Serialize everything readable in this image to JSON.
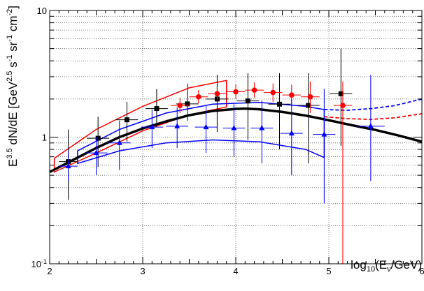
{
  "chart_data": {
    "type": "scatter",
    "xlabel": "log10(Eν/GeV)",
    "ylabel": "E^3.5 dN/dE [GeV^2.5 s^-1 sr^-1 cm^-2]",
    "xlim": [
      2,
      6
    ],
    "ylim": [
      0.1,
      10
    ],
    "yscale": "log",
    "grid": true,
    "x_ticks": [
      "2",
      "3",
      "4",
      "5",
      "6"
    ],
    "y_ticks": [
      {
        "value": 0.1,
        "base": "10",
        "exp": "-1"
      },
      {
        "value": 1,
        "base": "1",
        "exp": ""
      },
      {
        "value": 10,
        "base": "10",
        "exp": ""
      }
    ],
    "x_axis_title": {
      "base": "log",
      "sub1": "10",
      "mid": "(E",
      "sub2": "ν",
      "end": "/GeV)"
    },
    "y_axis_title": {
      "p1": "E",
      "s1": "3.5",
      "p2": " dN/dE [GeV",
      "s2": "2.5",
      "p3": " s",
      "s3": "-1",
      "p4": " sr",
      "s4": "-1",
      "p5": " cm",
      "s5": "-2",
      "p6": "]"
    },
    "colors": {
      "black": "#000000",
      "red": "#ff0000",
      "blue": "#0000ff",
      "grid": "#555555"
    },
    "model_curve": {
      "color": "#000000",
      "x": [
        2.0,
        2.25,
        2.5,
        2.75,
        3.0,
        3.25,
        3.5,
        3.75,
        4.0,
        4.1,
        4.25,
        4.5,
        4.75,
        5.0,
        5.25,
        5.5,
        5.75,
        6.0
      ],
      "y": [
        0.53,
        0.66,
        0.82,
        1.0,
        1.17,
        1.33,
        1.49,
        1.61,
        1.67,
        1.68,
        1.66,
        1.58,
        1.48,
        1.36,
        1.24,
        1.14,
        1.03,
        0.92
      ]
    },
    "series": [
      {
        "color": "#000000",
        "marker": "square",
        "points": [
          {
            "x": 2.2,
            "y": 0.64,
            "xerr": 0.1,
            "ylo": 0.32,
            "yhi": 1.15
          },
          {
            "x": 2.52,
            "y": 0.98,
            "xerr": 0.12,
            "ylo": 0.58,
            "yhi": 1.45
          },
          {
            "x": 2.83,
            "y": 1.37,
            "xerr": 0.12,
            "ylo": 0.92,
            "yhi": 1.9
          },
          {
            "x": 3.15,
            "y": 1.68,
            "xerr": 0.12,
            "ylo": 1.2,
            "yhi": 2.4
          },
          {
            "x": 3.48,
            "y": 1.83,
            "xerr": 0.12,
            "ylo": 1.35,
            "yhi": 2.65
          },
          {
            "x": 3.8,
            "y": 2.0,
            "xerr": 0.12,
            "ylo": 1.1,
            "yhi": 3.1
          },
          {
            "x": 4.13,
            "y": 1.93,
            "xerr": 0.12,
            "ylo": 0.95,
            "yhi": 3.2
          },
          {
            "x": 4.47,
            "y": 1.82,
            "xerr": 0.12,
            "ylo": 0.8,
            "yhi": 3.2
          },
          {
            "x": 4.78,
            "y": 1.78,
            "xerr": 0.12,
            "ylo": 0.62,
            "yhi": 3.2
          },
          {
            "x": 5.13,
            "y": 2.2,
            "xerr": 0.12,
            "ylo": 0.85,
            "yhi": 5.0
          }
        ]
      },
      {
        "color": "#ff0000",
        "marker": "circle",
        "points": [
          {
            "x": 3.4,
            "y": 1.78,
            "xerr": 0.1,
            "ylo": 1.55,
            "yhi": 2.05
          },
          {
            "x": 3.6,
            "y": 2.08,
            "xerr": 0.1,
            "ylo": 1.85,
            "yhi": 2.35
          },
          {
            "x": 3.8,
            "y": 2.2,
            "xerr": 0.1,
            "ylo": 1.95,
            "yhi": 2.5
          },
          {
            "x": 4.0,
            "y": 2.28,
            "xerr": 0.1,
            "ylo": 2.0,
            "yhi": 2.6
          },
          {
            "x": 4.2,
            "y": 2.35,
            "xerr": 0.1,
            "ylo": 2.05,
            "yhi": 2.7
          },
          {
            "x": 4.4,
            "y": 2.25,
            "xerr": 0.1,
            "ylo": 1.9,
            "yhi": 2.65
          },
          {
            "x": 4.6,
            "y": 2.15,
            "xerr": 0.1,
            "ylo": 1.75,
            "yhi": 2.6
          },
          {
            "x": 4.8,
            "y": 2.08,
            "xerr": 0.1,
            "ylo": 1.55,
            "yhi": 2.75
          },
          {
            "x": 5.15,
            "y": 1.78,
            "xerr": 0.1,
            "ylo": 0.1,
            "yhi": 2.75
          }
        ]
      },
      {
        "color": "#0000ff",
        "marker": "triangle",
        "points": [
          {
            "x": 2.2,
            "y": 0.59,
            "xerr": 0.1,
            "ylo": 0.44,
            "yhi": 0.8
          },
          {
            "x": 2.5,
            "y": 0.75,
            "xerr": 0.12,
            "ylo": 0.5,
            "yhi": 1.0
          },
          {
            "x": 2.75,
            "y": 0.9,
            "xerr": 0.12,
            "ylo": 0.55,
            "yhi": 1.35
          },
          {
            "x": 3.1,
            "y": 1.2,
            "xerr": 0.12,
            "ylo": 0.82,
            "yhi": 1.65
          },
          {
            "x": 3.37,
            "y": 1.22,
            "xerr": 0.12,
            "ylo": 0.82,
            "yhi": 1.72
          },
          {
            "x": 3.68,
            "y": 1.2,
            "xerr": 0.12,
            "ylo": 0.75,
            "yhi": 1.78
          },
          {
            "x": 3.98,
            "y": 1.18,
            "xerr": 0.12,
            "ylo": 0.7,
            "yhi": 1.82
          },
          {
            "x": 4.28,
            "y": 1.18,
            "xerr": 0.12,
            "ylo": 0.62,
            "yhi": 1.95
          },
          {
            "x": 4.6,
            "y": 1.07,
            "xerr": 0.12,
            "ylo": 0.5,
            "yhi": 2.0
          },
          {
            "x": 4.95,
            "y": 1.05,
            "xerr": 0.12,
            "ylo": 0.3,
            "yhi": 2.4
          },
          {
            "x": 5.45,
            "y": 1.22,
            "xerr": 0.15,
            "ylo": 0.45,
            "yhi": 3.1
          }
        ]
      }
    ],
    "bands": [
      {
        "color": "#ff0000",
        "upper": {
          "x": [
            2.05,
            2.5,
            3.0,
            3.5,
            3.9
          ],
          "y": [
            0.68,
            1.15,
            1.75,
            2.45,
            2.8
          ]
        },
        "lower": {
          "x": [
            2.05,
            2.5,
            3.0,
            3.5,
            3.9
          ],
          "y": [
            0.53,
            0.75,
            1.12,
            1.5,
            1.73
          ]
        }
      },
      {
        "color": "#0000ff",
        "upper": {
          "x": [
            2.3,
            2.75,
            3.25,
            3.75,
            4.25,
            4.75,
            4.95
          ],
          "y": [
            0.78,
            1.15,
            1.55,
            1.82,
            1.88,
            1.75,
            1.65
          ]
        },
        "lower": {
          "x": [
            2.3,
            2.75,
            3.25,
            3.75,
            4.25,
            4.75,
            4.95
          ],
          "y": [
            0.62,
            0.78,
            0.9,
            0.95,
            0.92,
            0.8,
            0.69
          ]
        }
      }
    ],
    "dashed_extensions": [
      {
        "color": "#0000ff",
        "x": [
          4.95,
          5.2,
          5.45,
          5.7,
          6.0
        ],
        "y": [
          1.65,
          1.63,
          1.68,
          1.77,
          2.0
        ]
      },
      {
        "color": "#ff0000",
        "x": [
          4.95,
          5.2,
          5.45,
          5.7,
          6.0
        ],
        "y": [
          1.45,
          1.4,
          1.38,
          1.42,
          1.53
        ]
      }
    ]
  }
}
